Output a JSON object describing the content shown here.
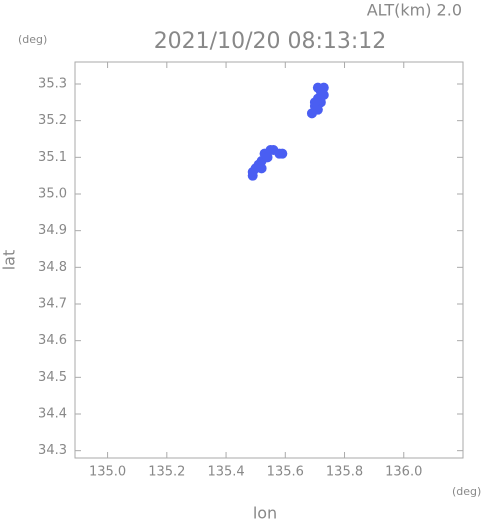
{
  "chart_data": {
    "type": "scatter",
    "title": "2021/10/20 08:13:12",
    "altitude_label": "ALT(km) 2.0",
    "y_unit": "(deg)",
    "x_unit": "(deg)",
    "ylabel": "lat",
    "xlabel": "lon",
    "xlim": [
      134.89,
      136.2
    ],
    "ylim": [
      34.28,
      35.36
    ],
    "xticks": [
      {
        "value": 135.0,
        "label": "135.0"
      },
      135.2,
      135.4,
      135.6,
      135.8,
      {
        "value": 136.0,
        "label": "136.0"
      }
    ],
    "yticks": [
      34.3,
      34.4,
      34.5,
      34.6,
      34.7,
      34.8,
      34.9,
      {
        "value": 35.0,
        "label": "35.0"
      },
      35.1,
      35.2,
      35.3
    ],
    "color": "#4a5ef2",
    "x": [
      135.71,
      135.72,
      135.73,
      135.71,
      135.72,
      135.7,
      135.71,
      135.69,
      135.73,
      135.7,
      135.49,
      135.5,
      135.51,
      135.52,
      135.53,
      135.55,
      135.56,
      135.58,
      135.59,
      135.49,
      135.52,
      135.54
    ],
    "y": [
      35.29,
      35.28,
      35.29,
      35.26,
      35.25,
      35.24,
      35.23,
      35.22,
      35.27,
      35.25,
      35.05,
      35.07,
      35.08,
      35.09,
      35.11,
      35.12,
      35.12,
      35.11,
      35.11,
      35.06,
      35.07,
      35.1
    ]
  }
}
